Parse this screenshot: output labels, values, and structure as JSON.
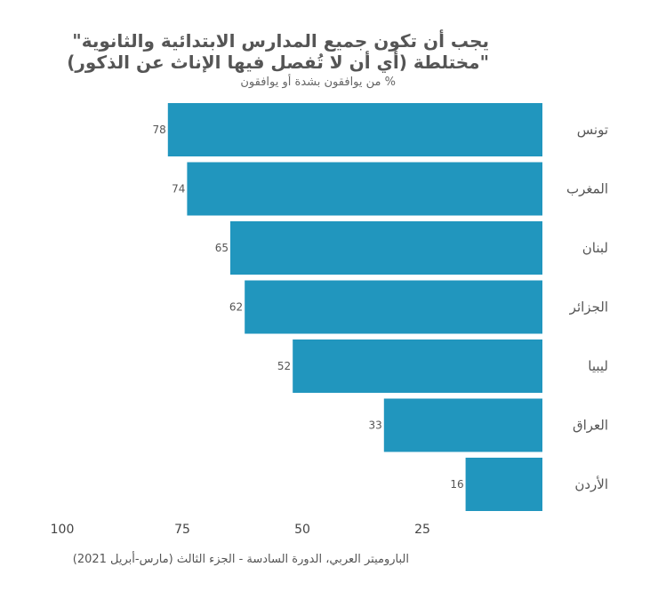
{
  "chart_data": {
    "type": "bar",
    "orientation": "horizontal",
    "title_line1": "يجب أن تكون جميع المدارس الابتدائية والثانوية\"",
    "title_line2": "\"مختلطة (أي أن لا تُفصل فيها الإناث عن الذكور)",
    "subtitle": "% من يوافقون بشدة أو يوافقون",
    "source": "الباروميتر العربي، الدورة السادسة - الجزء الثالث (مارس-أبريل 2021)",
    "categories": [
      "تونس",
      "المغرب",
      "لبنان",
      "الجزائر",
      "ليبيا",
      "العراق",
      "الأردن"
    ],
    "values": [
      78,
      74,
      65,
      62,
      52,
      33,
      16
    ],
    "xlim": [
      100,
      0
    ],
    "x_ticks": [
      100,
      75,
      50,
      25
    ],
    "bar_color": "#2196be",
    "grid": false
  }
}
